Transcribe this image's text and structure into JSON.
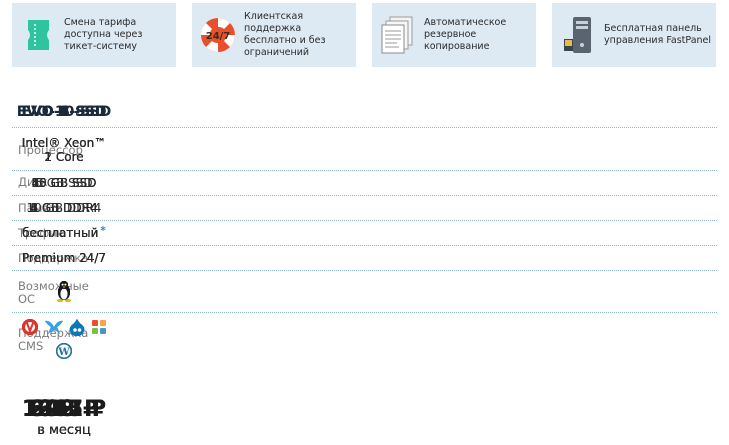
{
  "features": [
    {
      "icon": "ticket-icon",
      "text": "Смена тарифа доступна через тикет-систему"
    },
    {
      "icon": "lifebuoy-icon",
      "badge": "24/7",
      "text": "Клиентская поддержка бесплатно и без ограничений"
    },
    {
      "icon": "documents-icon",
      "text": "Автоматическое резервное копирование"
    },
    {
      "icon": "server-icon",
      "text": "Бесплатная панель управления FastPanel"
    }
  ],
  "row_labels": {
    "cpu": "Процессор",
    "disk": "Диск",
    "ram": "Память",
    "traffic": "Трафик",
    "support": "Поддержка",
    "os": "Возможные ОС",
    "cms": "Поддержка CMS"
  },
  "plans": [
    {
      "name": "EVO-1-SSD",
      "cpu1": "Intel® Xeon™",
      "cpu2": "1 Core",
      "disk": "5 GB SSD",
      "ram": "1 GB DDR4",
      "traffic": "бесплатный",
      "support": "Premium 24/7",
      "price": "248 ₽",
      "per": "в месяц"
    },
    {
      "name": "EVO-2-SSD",
      "cpu1": "Intel® Xeon™",
      "cpu2": "1 Core",
      "disk": "15 GB SSD",
      "ram": "2 GB DDR4",
      "traffic": "бесплатный",
      "support": "Premium 24/7",
      "price": "502 ₽",
      "per": "в месяц"
    },
    {
      "name": "EVO-4-SSD",
      "cpu1": "Intel® Xeon™",
      "cpu2": "1 Core",
      "disk": "25 GB SSD",
      "ram": "4 GB DDR4",
      "traffic": "бесплатный",
      "support": "Premium 24/7",
      "price": "693 ₽",
      "per": "в месяц"
    },
    {
      "name": "EVO-6-SSD",
      "cpu1": "Intel® Xeon™",
      "cpu2": "1 Core",
      "disk": "40 GB SSD",
      "ram": "6 GB DDR4",
      "traffic": "бесплатный",
      "support": "Premium 24/7",
      "price": "1011 ₽",
      "per": "в месяц",
      "highlighted": true
    },
    {
      "name": "EVO-8-SSD",
      "cpu1": "Intel® Xeon™",
      "cpu2": "2 Core",
      "disk": "50 GB SSD",
      "ram": "8 GB DDR4",
      "traffic": "бесплатный",
      "support": "Premium 24/7",
      "price": "1265 ₽",
      "per": "в месяц"
    },
    {
      "name": "EVO-10-SSD",
      "cpu1": "Intel® Xeon™",
      "cpu2": "2 Core",
      "disk": "65 GB SSD",
      "ram": "10 GB DDR4",
      "traffic": "бесплатный",
      "support": "Premium 24/7",
      "price": "1647 ₽",
      "per": "в месяц"
    }
  ],
  "traffic_note_marker": "*",
  "os_icon": "linux-penguin-icon",
  "cms_icons": [
    "bitrix-icon",
    "modx-icon",
    "drupal-icon",
    "joomla-icon",
    "wordpress-icon"
  ],
  "colors": {
    "feature_bg": "#dde9f3",
    "highlight": "#4a90c2",
    "grid_line": "#8fb3d3",
    "label_gray": "#7b7b7b"
  }
}
